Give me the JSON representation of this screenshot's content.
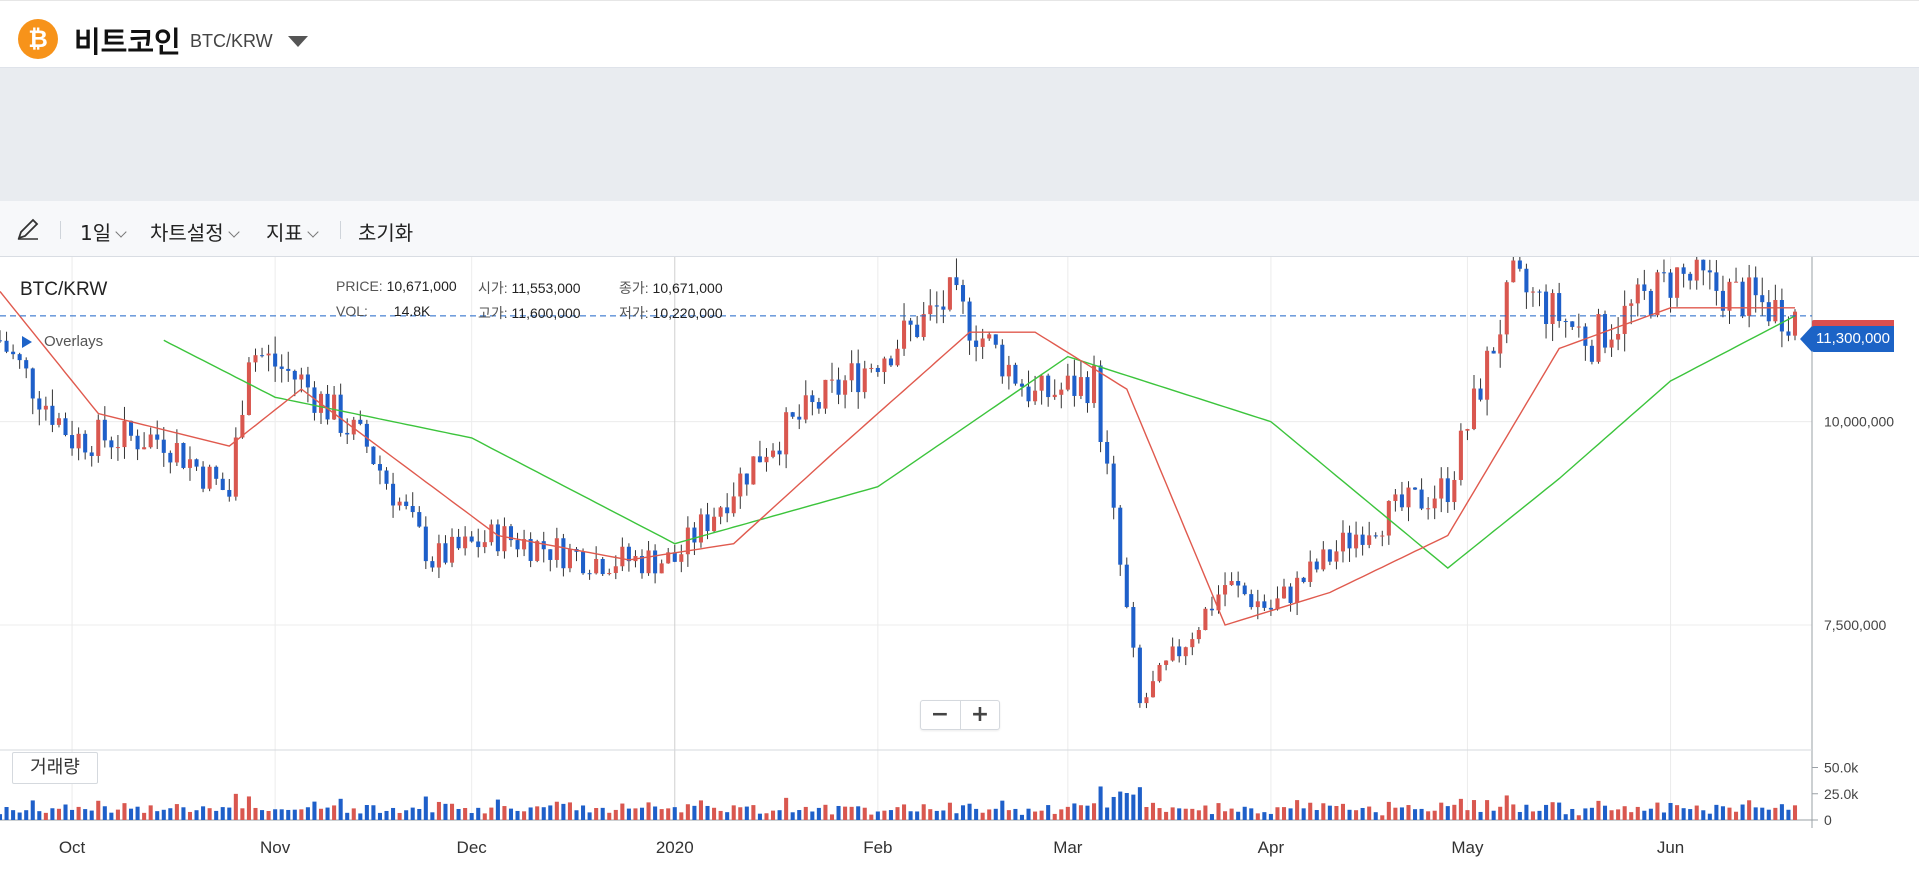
{
  "header": {
    "coin_symbol": "₿",
    "coin_name": "비트코인",
    "pair": "BTC/KRW"
  },
  "toolbar": {
    "interval_label": "1일",
    "chart_settings_label": "차트설정",
    "indicators_label": "지표",
    "reset_label": "초기화"
  },
  "chart_header": {
    "symbol": "BTC/KRW",
    "price_label": "PRICE:",
    "price_value": "10,671,000",
    "vol_label": "VOL:",
    "vol_value": "14.8K",
    "open_label": "시가:",
    "open_value": "11,553,000",
    "high_label": "고가:",
    "high_value": "11,600,000",
    "close_label": "종가:",
    "close_value": "10,671,000",
    "low_label": "저가:",
    "low_value": "10,220,000",
    "overlays_label": "Overlays"
  },
  "zoom": {
    "minus": "−",
    "plus": "+"
  },
  "volume_pane_label": "거래량",
  "current_price_tag": "11,300,000",
  "colors": {
    "up": "#d9574f",
    "down": "#1e5fc9",
    "ma_short": "#e05a4e",
    "ma_long": "#3cc43c",
    "accent": "#1c63c6"
  },
  "chart_data": {
    "type": "candlestick",
    "title": "",
    "ylim": [
      6000000,
      12000000
    ],
    "yticks": [
      {
        "value": 7500000,
        "label": "7,500,000"
      },
      {
        "value": 10000000,
        "label": "10,000,000"
      }
    ],
    "volume_ticks": [
      {
        "value": 50000,
        "label": "50.0k"
      },
      {
        "value": 25000,
        "label": "25.0k"
      },
      {
        "value": 0,
        "label": "0"
      }
    ],
    "xticks": [
      "Oct",
      "Nov",
      "Dec",
      "2020",
      "Feb",
      "Mar",
      "Apr",
      "May",
      "Jun"
    ],
    "current_price": 11300000,
    "monthly_anchors": [
      {
        "date": "2019-09-20",
        "close": 11000000
      },
      {
        "date": "2019-10-01",
        "close": 9800000
      },
      {
        "date": "2019-10-15",
        "close": 9800000
      },
      {
        "date": "2019-10-25",
        "close": 9100000
      },
      {
        "date": "2019-10-28",
        "close": 10900000
      },
      {
        "date": "2019-11-05",
        "close": 10500000
      },
      {
        "date": "2019-11-15",
        "close": 9700000
      },
      {
        "date": "2019-11-25",
        "close": 8300000
      },
      {
        "date": "2019-12-05",
        "close": 8600000
      },
      {
        "date": "2019-12-15",
        "close": 8400000
      },
      {
        "date": "2019-12-20",
        "close": 8300000
      },
      {
        "date": "2020-01-01",
        "close": 8300000
      },
      {
        "date": "2020-01-15",
        "close": 9700000
      },
      {
        "date": "2020-02-01",
        "close": 10800000
      },
      {
        "date": "2020-02-12",
        "close": 11500000
      },
      {
        "date": "2020-02-25",
        "close": 10300000
      },
      {
        "date": "2020-03-05",
        "close": 10500000
      },
      {
        "date": "2020-03-12",
        "close": 6500000
      },
      {
        "date": "2020-03-25",
        "close": 8000000
      },
      {
        "date": "2020-04-01",
        "close": 7700000
      },
      {
        "date": "2020-04-15",
        "close": 8700000
      },
      {
        "date": "2020-04-28",
        "close": 9200000
      },
      {
        "date": "2020-05-08",
        "close": 11700000
      },
      {
        "date": "2020-05-20",
        "close": 11000000
      },
      {
        "date": "2020-06-02",
        "close": 11800000
      },
      {
        "date": "2020-06-20",
        "close": 11300000
      }
    ],
    "ma_short_anchors": [
      {
        "date": "2019-09-20",
        "value": 11600000
      },
      {
        "date": "2019-10-05",
        "value": 10100000
      },
      {
        "date": "2019-10-25",
        "value": 9700000
      },
      {
        "date": "2019-11-05",
        "value": 10400000
      },
      {
        "date": "2019-11-20",
        "value": 9500000
      },
      {
        "date": "2019-12-05",
        "value": 8600000
      },
      {
        "date": "2019-12-25",
        "value": 8300000
      },
      {
        "date": "2020-01-10",
        "value": 8500000
      },
      {
        "date": "2020-01-25",
        "value": 9600000
      },
      {
        "date": "2020-02-15",
        "value": 11100000
      },
      {
        "date": "2020-02-25",
        "value": 11100000
      },
      {
        "date": "2020-03-10",
        "value": 10400000
      },
      {
        "date": "2020-03-25",
        "value": 7500000
      },
      {
        "date": "2020-04-10",
        "value": 7900000
      },
      {
        "date": "2020-04-28",
        "value": 8600000
      },
      {
        "date": "2020-05-15",
        "value": 10900000
      },
      {
        "date": "2020-06-01",
        "value": 11400000
      },
      {
        "date": "2020-06-20",
        "value": 11400000
      }
    ],
    "ma_long_anchors": [
      {
        "date": "2019-10-15",
        "value": 11000000
      },
      {
        "date": "2019-11-01",
        "value": 10300000
      },
      {
        "date": "2019-12-01",
        "value": 9800000
      },
      {
        "date": "2020-01-01",
        "value": 8500000
      },
      {
        "date": "2020-02-01",
        "value": 9200000
      },
      {
        "date": "2020-03-01",
        "value": 10800000
      },
      {
        "date": "2020-04-01",
        "value": 10000000
      },
      {
        "date": "2020-04-28",
        "value": 8200000
      },
      {
        "date": "2020-05-15",
        "value": 9300000
      },
      {
        "date": "2020-06-01",
        "value": 10500000
      },
      {
        "date": "2020-06-20",
        "value": 11300000
      }
    ]
  }
}
